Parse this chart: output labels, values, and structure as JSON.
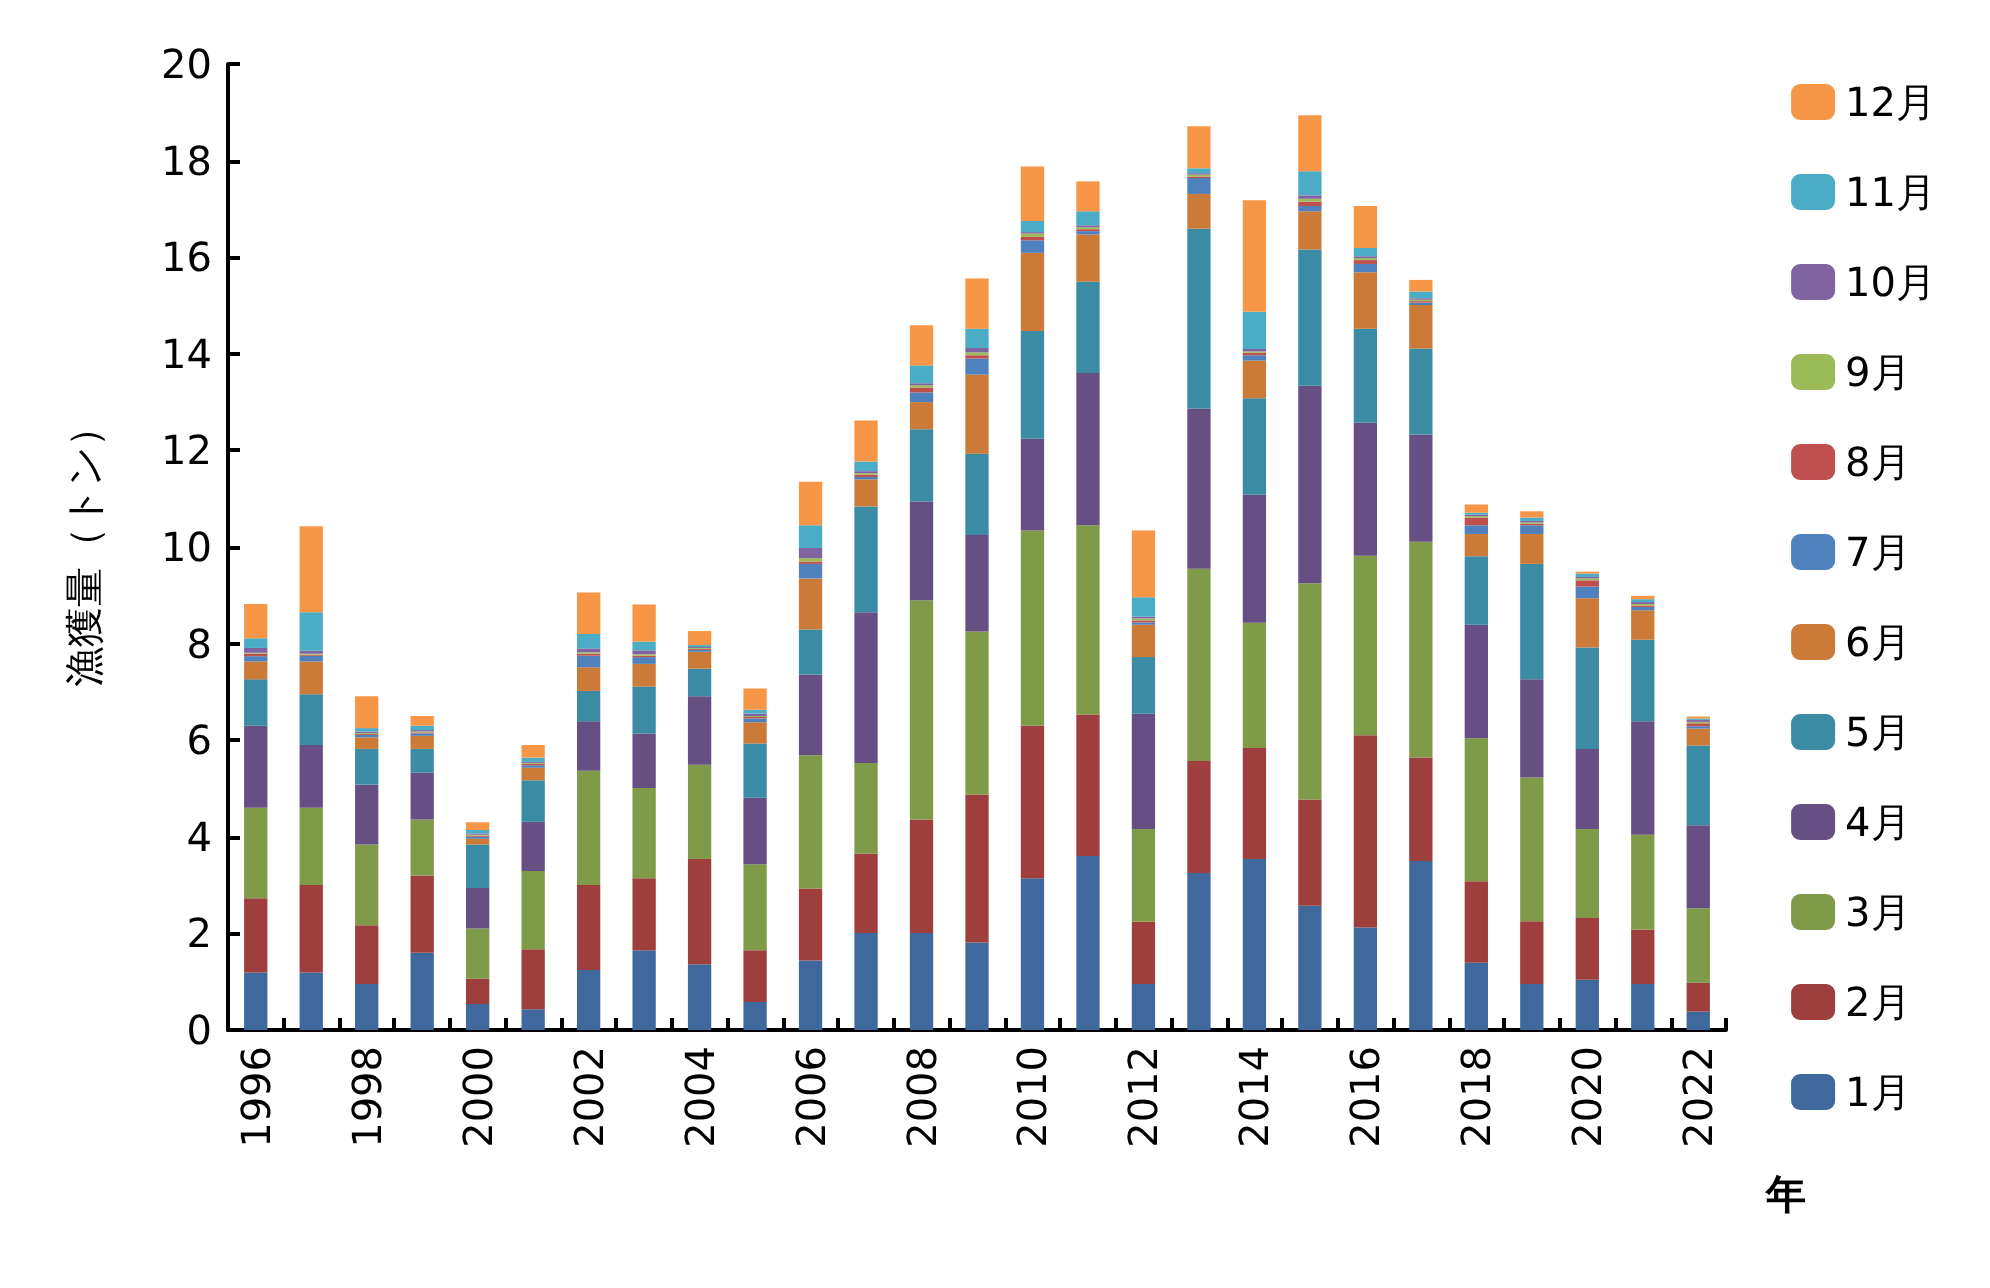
{
  "chart_data": {
    "type": "bar",
    "stacked": true,
    "ylabel": "漁獲量（トン）",
    "xlabel": "年",
    "categories": [
      "1996",
      null,
      "1998",
      null,
      "2000",
      null,
      "2002",
      null,
      "2004",
      null,
      "2006",
      null,
      "2008",
      null,
      "2010",
      null,
      "2012",
      null,
      "2014",
      null,
      "2016",
      null,
      "2018",
      null,
      "2020",
      null,
      "2022"
    ],
    "ylim": [
      0,
      20
    ],
    "yticks": [
      0,
      2,
      4,
      6,
      8,
      10,
      12,
      14,
      16,
      18,
      20
    ],
    "grid": false,
    "legend": "right",
    "series": [
      {
        "name": "1月",
        "color": "#3f689c",
        "values": [
          1.19,
          1.19,
          0.95,
          1.6,
          0.54,
          0.43,
          1.24,
          1.65,
          1.36,
          0.58,
          1.44,
          2.01,
          2.01,
          1.81,
          3.14,
          3.6,
          0.95,
          3.25,
          3.54,
          2.57,
          2.12,
          3.5,
          1.39,
          0.95,
          1.04,
          0.95,
          0.38
        ]
      },
      {
        "name": "2月",
        "color": "#9e3f3d",
        "values": [
          1.54,
          1.81,
          1.22,
          1.6,
          0.52,
          1.24,
          1.76,
          1.49,
          2.18,
          1.07,
          1.49,
          1.64,
          2.35,
          3.06,
          3.16,
          2.93,
          1.29,
          2.32,
          2.3,
          2.2,
          3.98,
          2.14,
          1.69,
          1.3,
          1.28,
          1.13,
          0.6
        ]
      },
      {
        "name": "3月",
        "color": "#7f9a48",
        "values": [
          1.87,
          1.6,
          1.67,
          1.16,
          1.04,
          1.62,
          2.37,
          1.87,
          1.95,
          1.78,
          2.76,
          1.88,
          4.54,
          3.38,
          4.04,
          3.92,
          1.92,
          3.98,
          2.59,
          4.48,
          3.72,
          4.47,
          2.96,
          2.98,
          1.84,
          1.96,
          1.54
        ]
      },
      {
        "name": "4月",
        "color": "#664f83",
        "values": [
          1.7,
          1.3,
          1.24,
          0.97,
          0.84,
          1.02,
          1.02,
          1.13,
          1.42,
          1.38,
          1.67,
          3.12,
          2.04,
          2.0,
          1.9,
          3.15,
          2.39,
          3.32,
          2.65,
          4.09,
          2.75,
          2.22,
          2.35,
          2.03,
          1.66,
          2.35,
          1.72
        ]
      },
      {
        "name": "5月",
        "color": "#3a8ba3",
        "values": [
          0.96,
          1.05,
          0.74,
          0.49,
          0.9,
          0.86,
          0.63,
          0.97,
          0.57,
          1.12,
          0.93,
          2.19,
          1.5,
          1.68,
          2.23,
          1.89,
          1.17,
          3.72,
          2.0,
          2.82,
          1.95,
          1.78,
          1.42,
          2.39,
          2.1,
          1.69,
          1.65
        ]
      },
      {
        "name": "6月",
        "color": "#cb7a37",
        "values": [
          0.37,
          0.68,
          0.24,
          0.27,
          0.12,
          0.26,
          0.49,
          0.47,
          0.35,
          0.44,
          1.06,
          0.56,
          0.56,
          1.64,
          1.62,
          0.98,
          0.67,
          0.72,
          0.78,
          0.79,
          1.17,
          0.9,
          0.46,
          0.62,
          1.02,
          0.61,
          0.35
        ]
      },
      {
        "name": "7月",
        "color": "#4f81bd",
        "values": [
          0.11,
          0.12,
          0.05,
          0.05,
          0.04,
          0.05,
          0.24,
          0.14,
          0.04,
          0.08,
          0.3,
          0.05,
          0.2,
          0.33,
          0.26,
          0.07,
          0.05,
          0.33,
          0.11,
          0.11,
          0.17,
          0.05,
          0.18,
          0.18,
          0.24,
          0.07,
          0.05
        ]
      },
      {
        "name": "8月",
        "color": "#c0504d",
        "values": [
          0.05,
          0.02,
          0.02,
          0.02,
          0.02,
          0.03,
          0.04,
          0.03,
          0.02,
          0.03,
          0.05,
          0.05,
          0.1,
          0.07,
          0.07,
          0.04,
          0.04,
          0.03,
          0.05,
          0.09,
          0.08,
          0.03,
          0.16,
          0.03,
          0.13,
          0.03,
          0.06
        ]
      },
      {
        "name": "9月",
        "color": "#9bbb59",
        "values": [
          0.02,
          0.02,
          0.02,
          0.02,
          0.02,
          0.02,
          0.03,
          0.03,
          0.02,
          0.02,
          0.07,
          0.03,
          0.05,
          0.06,
          0.07,
          0.04,
          0.04,
          0.04,
          0.03,
          0.06,
          0.04,
          0.03,
          0.03,
          0.03,
          0.04,
          0.03,
          0.03
        ]
      },
      {
        "name": "10月",
        "color": "#8064a2",
        "values": [
          0.1,
          0.06,
          0.03,
          0.03,
          0.03,
          0.02,
          0.08,
          0.08,
          0.02,
          0.05,
          0.21,
          0.04,
          0.04,
          0.09,
          0.03,
          0.04,
          0.04,
          0.03,
          0.05,
          0.07,
          0.04,
          0.03,
          0.03,
          0.03,
          0.03,
          0.04,
          0.04
        ]
      },
      {
        "name": "11月",
        "color": "#4bacc6",
        "values": [
          0.2,
          0.8,
          0.07,
          0.09,
          0.07,
          0.09,
          0.3,
          0.18,
          0.04,
          0.08,
          0.47,
          0.2,
          0.37,
          0.4,
          0.23,
          0.29,
          0.4,
          0.1,
          0.77,
          0.5,
          0.17,
          0.14,
          0.04,
          0.07,
          0.07,
          0.06,
          0.03
        ]
      },
      {
        "name": "12月",
        "color": "#f79646",
        "values": [
          0.71,
          1.78,
          0.66,
          0.2,
          0.16,
          0.26,
          0.86,
          0.77,
          0.29,
          0.44,
          0.9,
          0.85,
          0.83,
          1.04,
          1.13,
          0.62,
          1.38,
          0.87,
          2.31,
          1.16,
          0.87,
          0.24,
          0.17,
          0.13,
          0.04,
          0.07,
          0.04
        ]
      }
    ]
  }
}
